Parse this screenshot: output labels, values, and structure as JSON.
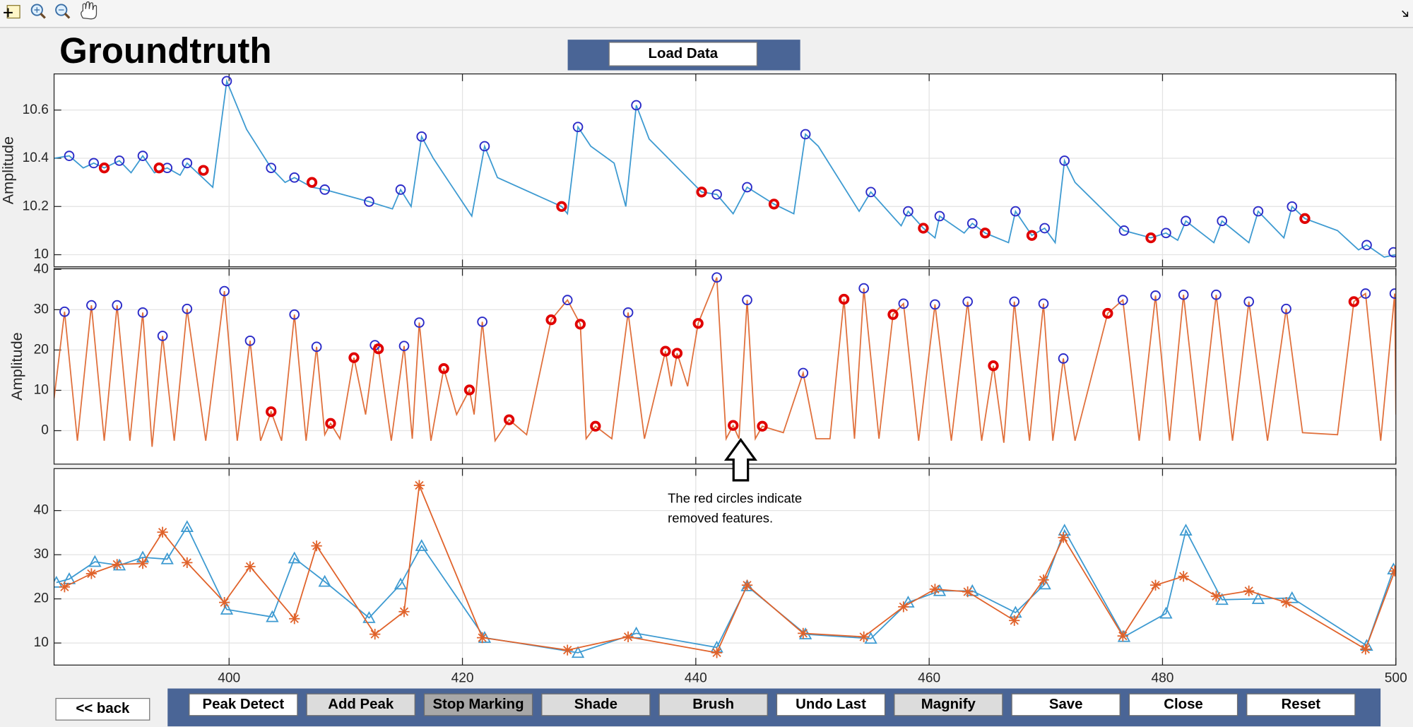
{
  "title": "Groundtruth",
  "load_button": "Load Data",
  "back_button": "<<  back",
  "annotation": [
    "The red circles indicate",
    "removed features."
  ],
  "buttons": [
    {
      "label": "Peak Detect",
      "state": "enabled"
    },
    {
      "label": "Add Peak",
      "state": "disabled"
    },
    {
      "label": "Stop Marking",
      "state": "pressed"
    },
    {
      "label": "Shade",
      "state": "disabled"
    },
    {
      "label": "Brush",
      "state": "disabled"
    },
    {
      "label": "Undo Last",
      "state": "enabled"
    },
    {
      "label": "Magnify",
      "state": "disabled"
    },
    {
      "label": "Save",
      "state": "enabled"
    },
    {
      "label": "Close",
      "state": "enabled"
    },
    {
      "label": "Reset",
      "state": "enabled"
    }
  ],
  "chart_data": [
    {
      "type": "line",
      "ylabel": "Amplitude",
      "xlim": [
        385,
        500
      ],
      "ylim": [
        9.95,
        10.75
      ],
      "xticks": [
        400,
        420,
        440,
        460,
        480,
        500
      ],
      "yticks": [
        10,
        10.2,
        10.4,
        10.6
      ],
      "show_xtick_labels": false,
      "grid": true,
      "series": [
        {
          "mark": "line",
          "color": "#3d9ad1",
          "x": [
            385,
            386.3,
            387.5,
            388.4,
            389.3,
            390.6,
            391.6,
            392.6,
            393.6,
            394.7,
            395.8,
            396.4,
            398.6,
            399.8,
            401.5,
            403.6,
            404.8,
            405.6,
            407.1,
            408.2,
            412,
            414,
            414.7,
            415.6,
            416.5,
            417.5,
            420.8,
            421.9,
            423,
            428.5,
            429,
            429.9,
            431,
            433,
            434,
            434.9,
            436,
            440.5,
            441.8,
            443.2,
            444.4,
            446.7,
            448.4,
            449.4,
            450.5,
            454,
            455,
            457.6,
            458.2,
            459.5,
            460.5,
            460.9,
            463,
            463.7,
            464.8,
            466.8,
            467.4,
            468.8,
            469.9,
            470.8,
            471.6,
            472.5,
            476.7,
            479,
            480.3,
            481.3,
            482,
            484.4,
            485.1,
            487.4,
            488.2,
            490.4,
            491.1,
            492.2,
            495,
            496.8,
            497.5,
            499,
            500
          ],
          "values": [
            10.4,
            10.41,
            10.36,
            10.38,
            10.36,
            10.39,
            10.34,
            10.41,
            10.34,
            10.36,
            10.33,
            10.38,
            10.28,
            10.72,
            10.52,
            10.36,
            10.3,
            10.32,
            10.28,
            10.27,
            10.22,
            10.19,
            10.27,
            10.2,
            10.49,
            10.4,
            10.16,
            10.45,
            10.32,
            10.2,
            10.17,
            10.53,
            10.45,
            10.38,
            10.2,
            10.62,
            10.48,
            10.26,
            10.25,
            10.17,
            10.28,
            10.21,
            10.17,
            10.5,
            10.45,
            10.18,
            10.26,
            10.12,
            10.18,
            10.11,
            10.07,
            10.16,
            10.09,
            10.13,
            10.09,
            10.05,
            10.18,
            10.08,
            10.11,
            10.05,
            10.39,
            10.3,
            10.1,
            10.07,
            10.09,
            10.06,
            10.14,
            10.05,
            10.14,
            10.05,
            10.18,
            10.07,
            10.2,
            10.15,
            10.1,
            10.02,
            10.04,
            9.99,
            10.0
          ]
        },
        {
          "mark": "circle",
          "color": "#2b2bc8",
          "x": [
            386.3,
            388.4,
            390.6,
            392.6,
            394.7,
            396.4,
            399.8,
            403.6,
            405.6,
            408.2,
            412.0,
            414.7,
            416.5,
            421.9,
            429.9,
            434.9,
            441.8,
            444.4,
            449.4,
            455.0,
            458.2,
            460.9,
            463.7,
            467.4,
            469.9,
            471.6,
            476.7,
            480.3,
            482.0,
            485.1,
            488.2,
            491.1,
            497.5,
            499.8
          ],
          "values": [
            10.41,
            10.38,
            10.39,
            10.41,
            10.36,
            10.38,
            10.72,
            10.36,
            10.32,
            10.27,
            10.22,
            10.27,
            10.49,
            10.45,
            10.53,
            10.62,
            10.25,
            10.28,
            10.5,
            10.26,
            10.18,
            10.16,
            10.13,
            10.18,
            10.11,
            10.39,
            10.1,
            10.09,
            10.14,
            10.14,
            10.18,
            10.2,
            10.04,
            10.01
          ]
        },
        {
          "mark": "removed",
          "color": "#e00000",
          "x": [
            389.3,
            394.0,
            397.8,
            407.1,
            428.5,
            440.5,
            446.7,
            459.5,
            464.8,
            468.8,
            479.0,
            492.2
          ],
          "values": [
            10.36,
            10.36,
            10.35,
            10.3,
            10.2,
            10.26,
            10.21,
            10.11,
            10.09,
            10.08,
            10.07,
            10.15
          ]
        }
      ]
    },
    {
      "type": "line",
      "ylabel": "Amplitude",
      "xlim": [
        385,
        500
      ],
      "ylim": [
        -8.3,
        40.2
      ],
      "xticks": [
        400,
        420,
        440,
        460,
        480,
        500
      ],
      "yticks": [
        0,
        10,
        20,
        30,
        40
      ],
      "show_xtick_labels": false,
      "grid": true,
      "series": [
        {
          "mark": "line",
          "color": "#e0703c",
          "x": [
            385,
            385.9,
            387,
            388.2,
            389.3,
            390.4,
            391.5,
            392.6,
            393.4,
            394.3,
            395.3,
            396.4,
            398,
            399.6,
            400.7,
            401.8,
            402.7,
            403.6,
            404.5,
            405.6,
            406.6,
            407.5,
            408.2,
            408.7,
            409.5,
            410.7,
            411.7,
            412.5,
            412.8,
            413.9,
            415.0,
            415.7,
            416.3,
            417.3,
            418.4,
            419.5,
            420.6,
            421,
            421.7,
            422.8,
            424.0,
            425.5,
            427.6,
            429.0,
            430.1,
            430.6,
            431.4,
            432.8,
            434.2,
            435.6,
            437.4,
            437.9,
            438.4,
            439.3,
            440.2,
            441.8,
            442.6,
            443.2,
            443.7,
            444.4,
            445.1,
            445.7,
            447.5,
            449.2,
            450.3,
            451.5,
            452.7,
            453.6,
            454.4,
            455.7,
            456.9,
            457.8,
            459.1,
            460.5,
            461.9,
            463.3,
            464.5,
            465.5,
            466.4,
            467.3,
            468.6,
            469.8,
            470.6,
            471.5,
            472.5,
            475.3,
            476.6,
            478,
            479.4,
            480.6,
            481.8,
            483.2,
            484.6,
            486,
            487.4,
            489,
            490.6,
            492,
            495,
            496.4,
            497.4,
            498.7,
            499.9,
            500
          ],
          "values": [
            8,
            29.5,
            -2.5,
            31.1,
            -2.5,
            31.1,
            -2.5,
            29.3,
            -4,
            23.5,
            -2.5,
            30.2,
            -2.5,
            34.6,
            -2.5,
            22.3,
            -2.5,
            4.7,
            -2.5,
            28.8,
            -2.5,
            20.8,
            -1,
            1.8,
            -2,
            18.1,
            4,
            21.2,
            20.3,
            -2.5,
            21.0,
            -2,
            26.8,
            -2.5,
            15.4,
            4,
            10.1,
            4,
            27.0,
            -2.5,
            2.7,
            -1,
            27.5,
            32.4,
            26.4,
            -2,
            1.1,
            -2,
            29.3,
            -2,
            19.7,
            11,
            19.2,
            11,
            26.6,
            38.0,
            -2,
            1.3,
            -2,
            32.4,
            -2,
            1.1,
            -0.5,
            14.3,
            -2,
            -2,
            32.6,
            -2,
            35.3,
            -2,
            28.8,
            31.5,
            -2.5,
            31.3,
            -2.5,
            32.0,
            -2.5,
            16.1,
            -3,
            32.0,
            -2.5,
            31.5,
            -2.5,
            17.9,
            -2.5,
            29.1,
            32.4,
            -2.5,
            33.5,
            -2.5,
            33.7,
            -2.5,
            33.7,
            -2.5,
            32.0,
            -2.5,
            30.2,
            -0.5,
            -1,
            32.0,
            34.0,
            -2.5,
            34.0,
            4
          ]
        },
        {
          "mark": "circle",
          "color": "#2b2bc8",
          "x": [
            385.9,
            388.2,
            390.4,
            392.6,
            394.3,
            396.4,
            399.6,
            401.8,
            405.6,
            407.5,
            412.5,
            415.0,
            416.3,
            421.7,
            429.0,
            434.2,
            441.8,
            444.4,
            449.2,
            454.4,
            457.8,
            460.5,
            463.3,
            467.3,
            469.8,
            471.5,
            476.6,
            479.4,
            481.8,
            484.6,
            487.4,
            490.6,
            497.4,
            499.9
          ],
          "values": [
            29.5,
            31.1,
            31.1,
            29.3,
            23.5,
            30.2,
            34.6,
            22.3,
            28.8,
            20.8,
            21.2,
            21.0,
            26.8,
            27.0,
            32.4,
            29.3,
            38.0,
            32.4,
            14.3,
            35.3,
            31.5,
            31.3,
            32.0,
            32.0,
            31.5,
            17.9,
            32.4,
            33.5,
            33.7,
            33.7,
            32.0,
            30.2,
            34.0,
            34.0
          ]
        },
        {
          "mark": "removed",
          "color": "#e00000",
          "x": [
            403.6,
            408.7,
            410.7,
            412.8,
            418.4,
            420.6,
            424.0,
            427.6,
            430.1,
            431.4,
            437.4,
            438.4,
            440.2,
            443.2,
            445.7,
            452.7,
            456.9,
            465.5,
            475.3,
            496.4
          ],
          "values": [
            4.7,
            1.8,
            18.1,
            20.3,
            15.4,
            10.1,
            2.7,
            27.5,
            26.4,
            1.1,
            19.7,
            19.2,
            26.6,
            1.3,
            1.1,
            32.6,
            28.8,
            16.1,
            29.1,
            32.0
          ]
        }
      ]
    },
    {
      "type": "line",
      "xlim": [
        385,
        500
      ],
      "ylim": [
        5,
        49.5
      ],
      "xticks": [
        400,
        420,
        440,
        460,
        480,
        500
      ],
      "yticks": [
        10,
        20,
        30,
        40
      ],
      "show_xtick_labels": true,
      "grid": true,
      "series": [
        {
          "mark": "triangle",
          "color": "#3d9ad1",
          "x": [
            385.2,
            386.3,
            388.5,
            390.6,
            392.6,
            394.7,
            396.4,
            399.8,
            403.7,
            405.6,
            408.2,
            412.0,
            414.7,
            416.5,
            421.9,
            429.9,
            434.9,
            441.8,
            444.4,
            449.4,
            455.0,
            458.2,
            460.9,
            463.7,
            467.4,
            469.9,
            471.6,
            476.7,
            480.3,
            482.0,
            485.1,
            488.2,
            491.1,
            497.5,
            499.8
          ],
          "values": [
            23.7,
            24.5,
            28.4,
            27.6,
            29.4,
            29.0,
            36.3,
            17.6,
            15.9,
            29.2,
            23.9,
            15.7,
            23.3,
            32.0,
            11.2,
            7.8,
            12.2,
            9.0,
            22.9,
            12.0,
            11.0,
            19.2,
            21.8,
            21.8,
            16.9,
            23.3,
            35.5,
            11.4,
            16.7,
            35.5,
            19.8,
            20.0,
            20.2,
            9.4,
            26.7
          ]
        },
        {
          "mark": "star",
          "color": "#e0622a",
          "x": [
            385.9,
            388.2,
            390.4,
            392.6,
            394.3,
            396.4,
            399.6,
            401.8,
            405.6,
            407.5,
            412.5,
            415.0,
            416.3,
            421.7,
            429.0,
            434.2,
            441.8,
            444.4,
            449.2,
            454.4,
            457.8,
            460.5,
            463.3,
            467.3,
            469.8,
            471.5,
            476.6,
            479.4,
            481.8,
            484.6,
            487.4,
            490.6,
            497.4,
            499.9
          ],
          "values": [
            22.7,
            25.7,
            27.8,
            28.0,
            35.1,
            28.2,
            19.2,
            27.3,
            15.5,
            32.0,
            12.0,
            17.1,
            45.7,
            11.2,
            8.4,
            11.4,
            7.8,
            23.1,
            12.2,
            11.4,
            18.2,
            22.2,
            21.6,
            15.1,
            24.3,
            33.9,
            11.6,
            23.1,
            25.1,
            20.6,
            21.8,
            19.2,
            8.6,
            26.3
          ]
        }
      ]
    }
  ]
}
